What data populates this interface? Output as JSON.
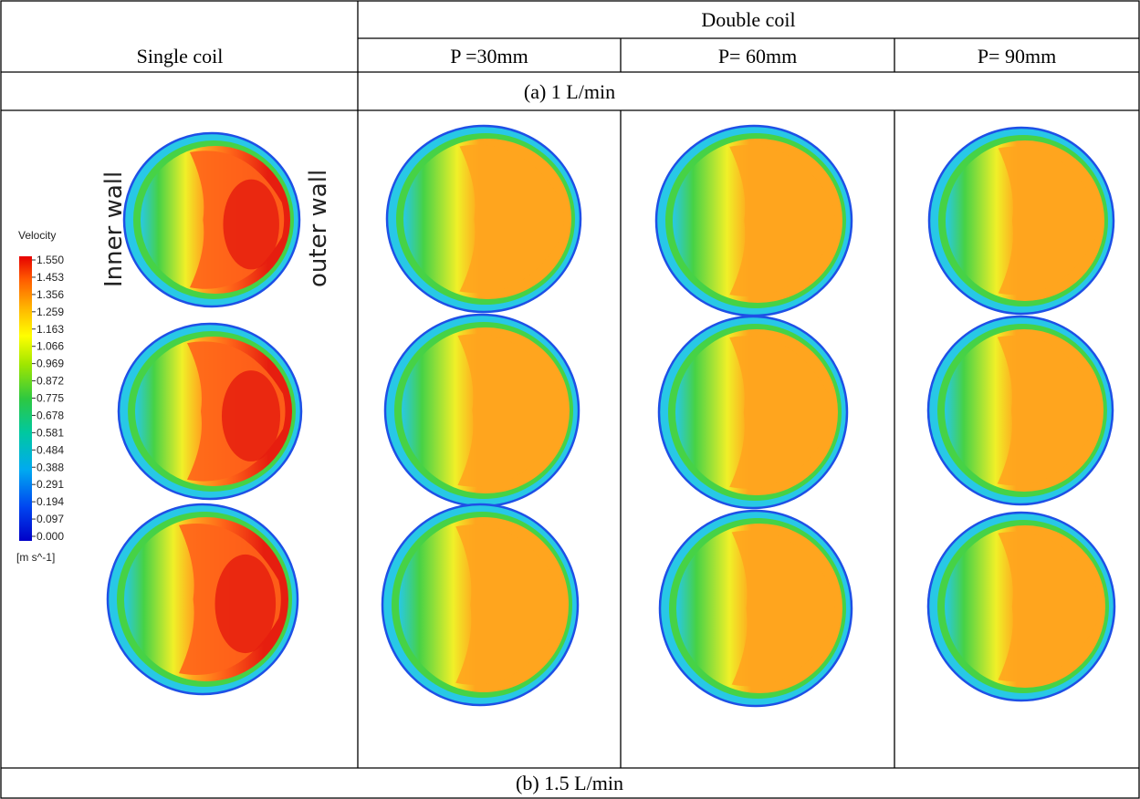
{
  "header": {
    "single_coil": "Single coil",
    "double_coil": "Double coil",
    "pitches": [
      "P =30mm",
      "P= 60mm",
      "P= 90mm"
    ]
  },
  "sections": {
    "a": "(a)  1 L/min",
    "b": "(b)  1.5 L/min"
  },
  "labels": {
    "inner_wall": "Inner wall",
    "outer_wall": "outer wall"
  },
  "legend": {
    "title": "Velocity",
    "ticks": [
      "1.550",
      "1.453",
      "1.356",
      "1.259",
      "1.163",
      "1.066",
      "0.969",
      "0.872",
      "0.775",
      "0.678",
      "0.581",
      "0.484",
      "0.388",
      "0.291",
      "0.194",
      "0.097",
      "0.000"
    ],
    "unit": "[m s^-1]",
    "colors": [
      "#e60000",
      "#ff4d00",
      "#ff8c00",
      "#ffc300",
      "#ffff00",
      "#c8f000",
      "#7ddc00",
      "#2ec840",
      "#00c8a0",
      "#00b4e6",
      "#0078f0",
      "#0032e6",
      "#0000c8"
    ]
  },
  "contour_colors": {
    "outline": "#1e50e6",
    "rim": "#28c8e6",
    "green": "#46d246",
    "yellow": "#f0f028",
    "orange": "#ffa51e",
    "red_orange": "#ff6419",
    "red": "#e61e0f"
  }
}
